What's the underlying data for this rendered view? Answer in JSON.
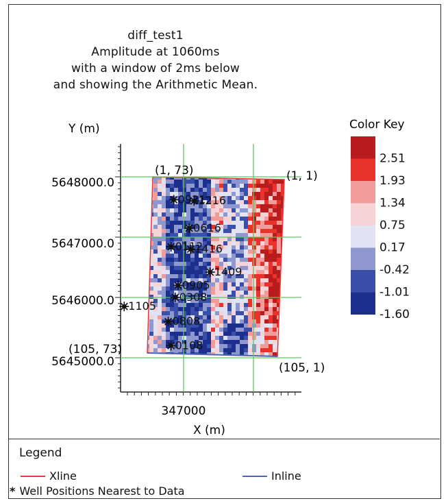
{
  "chart_data": {
    "type": "heatmap",
    "title_lines": [
      "diff_test1",
      "Amplitude at 1060ms",
      "with a window of 2ms below",
      "and showing the Arithmetic Mean."
    ],
    "xlabel": "X (m)",
    "ylabel": "Y (m)",
    "x_ticks": [
      "347000"
    ],
    "y_ticks": [
      "5648000.0",
      "5647000.0",
      "5646000.0",
      "5645000.0"
    ],
    "corner_labels": [
      "(1, 73)",
      "(1, 1)",
      "(105, 73)",
      "(105, 1)"
    ],
    "wells": [
      {
        "label": "0921",
        "x": 346860,
        "y": 5647620
      },
      {
        "label": "1216",
        "x": 347150,
        "y": 5647600
      },
      {
        "label": "0616",
        "x": 347080,
        "y": 5647150
      },
      {
        "label": "0112",
        "x": 346820,
        "y": 5646840
      },
      {
        "label": "1416",
        "x": 347100,
        "y": 5646800
      },
      {
        "label": "1409",
        "x": 347380,
        "y": 5646420
      },
      {
        "label": "0905",
        "x": 346920,
        "y": 5646200
      },
      {
        "label": "0308",
        "x": 346880,
        "y": 5646000
      },
      {
        "label": "1105",
        "x": 346150,
        "y": 5645850
      },
      {
        "label": "0808",
        "x": 346780,
        "y": 5645600
      },
      {
        "label": "0108",
        "x": 346820,
        "y": 5645200
      }
    ],
    "color_key": {
      "title": "Color Key",
      "labels": [
        "2.51",
        "1.93",
        "1.34",
        "0.75",
        "0.17",
        "-0.42",
        "-1.01",
        "-1.60"
      ],
      "colors": [
        "#b81c1c",
        "#e8322c",
        "#f19b9b",
        "#f8d3d6",
        "#dfe3f4",
        "#8e98cf",
        "#3a4fa8",
        "#1d2f8c"
      ]
    },
    "grid": true
  },
  "legend": {
    "title": "Legend",
    "items": [
      {
        "label": "Xline",
        "color": "#e03a3a"
      },
      {
        "label": "Inline",
        "color": "#4a64b8"
      },
      {
        "label": "Well Positions Nearest to Data",
        "symbol": "*"
      }
    ]
  }
}
